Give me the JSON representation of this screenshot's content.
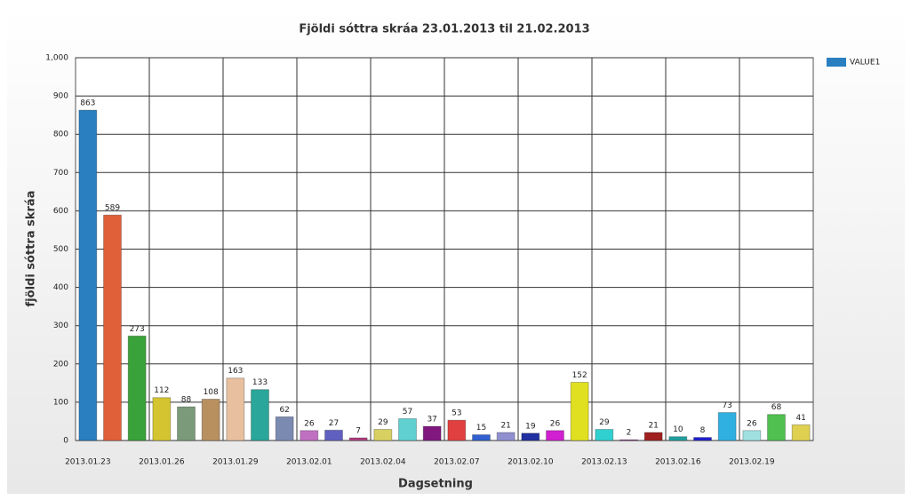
{
  "chart_data": {
    "type": "bar",
    "title": "Fjöldi sóttra skráa 23.01.2013 til 21.02.2013",
    "x_label": "Dagsetning",
    "y_label": "fjöldi sóttra skráa",
    "categories": [
      "2013.01.23",
      null,
      null,
      "2013.01.26",
      null,
      null,
      "2013.01.29",
      null,
      null,
      "2013.02.01",
      null,
      null,
      "2013.02.04",
      null,
      null,
      "2013.02.07",
      null,
      null,
      "2013.02.10",
      null,
      null,
      "2013.02.13",
      null,
      null,
      "2013.02.16",
      null,
      null,
      "2013.02.19",
      null,
      null
    ],
    "series": [
      {
        "name": "VALUE1",
        "color": "#2a7fc0",
        "colors": [
          "#2a7fc0",
          "#e0603a",
          "#3aa23a",
          "#d4c430",
          "#7a9a7a",
          "#b89060",
          "#e8c0a0",
          "#2aa79a",
          "#7a8ab0",
          "#c070c0",
          "#6060c0",
          "#b04080",
          "#d8d060",
          "#60d0d0",
          "#801880",
          "#e04040",
          "#3060d0",
          "#9090d0",
          "#2030a0",
          "#d020d0",
          "#e0e020",
          "#30d0d0",
          "#803080",
          "#a02020",
          "#20a0a0",
          "#2020d0",
          "#30b0e0",
          "#a0e0e0",
          "#50c050",
          "#e0d050"
        ],
        "values": [
          863,
          589,
          273,
          112,
          88,
          108,
          163,
          133,
          62,
          26,
          27,
          7,
          29,
          57,
          37,
          53,
          15,
          21,
          19,
          26,
          152,
          29,
          2,
          21,
          10,
          8,
          73,
          26,
          68,
          41
        ]
      }
    ],
    "ylim": [
      0,
      1000
    ],
    "yticks": [
      0,
      100,
      200,
      300,
      400,
      500,
      600,
      700,
      800,
      900,
      {
        "value": 1000,
        "label": "1,000"
      }
    ],
    "grid": true,
    "legend": "right"
  }
}
